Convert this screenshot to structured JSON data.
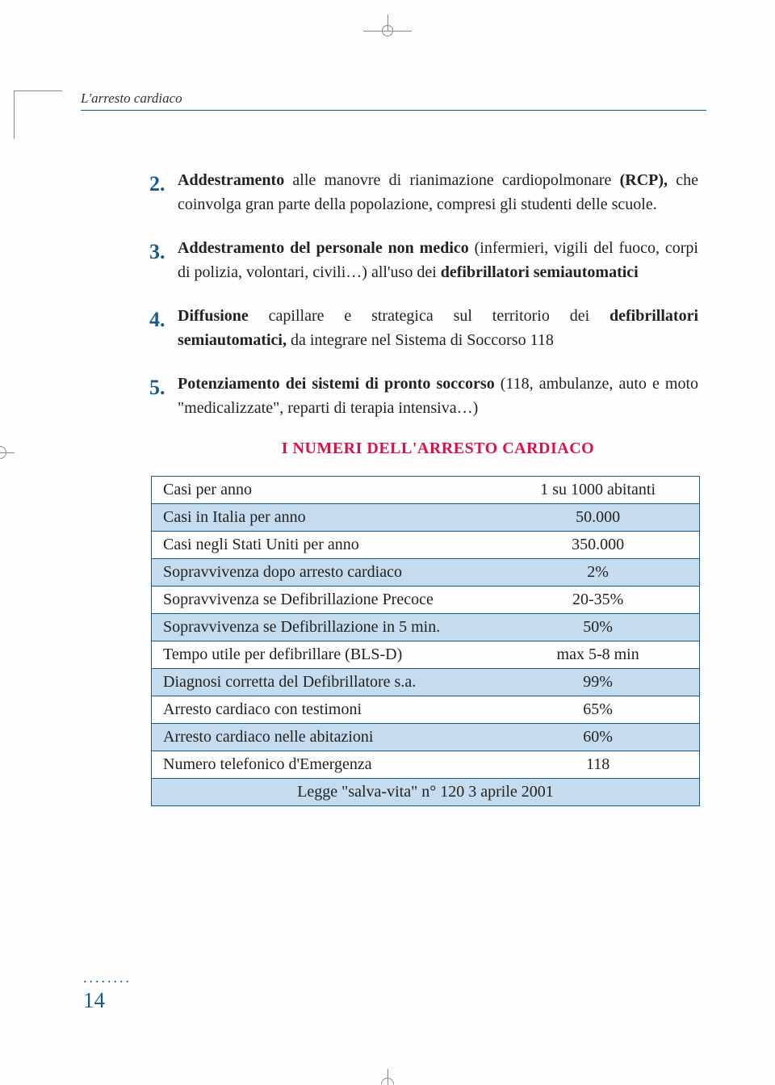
{
  "header": {
    "title": "L'arresto cardiaco"
  },
  "list": [
    {
      "num": "2.",
      "bold": "Addestramento",
      "rest": " alle manovre di rianimazione cardiopolmonare ",
      "bold2": "(RCP),",
      "rest2": " che coinvolga gran parte della popolazione, compresi gli studenti delle scuole."
    },
    {
      "num": "3.",
      "bold": "Addestramento del personale non medico",
      "rest": " (infermieri, vigili del fuoco, corpi di polizia, volontari, civili…) all'uso dei ",
      "bold2": "defibrillatori semiautomatici",
      "rest2": ""
    },
    {
      "num": "4.",
      "bold": "Diffusione",
      "rest": " capillare e strategica sul territorio dei ",
      "bold2": "defibrillatori semiautomatici,",
      "rest2": " da integrare nel Sistema di Soccorso 118"
    },
    {
      "num": "5.",
      "bold": "Potenziamento dei sistemi di pronto soccorso",
      "rest": " (118, ambulanze, auto e moto \"medicalizzate\", reparti di terapia intensiva…)",
      "bold2": "",
      "rest2": ""
    }
  ],
  "section_title": "I NUMERI DELL'ARRESTO CARDIACO",
  "table": {
    "rows": [
      {
        "label": "Casi per anno",
        "value": "1 su 1000 abitanti",
        "stripe": false
      },
      {
        "label": "Casi in Italia per anno",
        "value": "50.000",
        "stripe": true
      },
      {
        "label": "Casi negli Stati Uniti per anno",
        "value": "350.000",
        "stripe": false
      },
      {
        "label": "Sopravvivenza dopo arresto cardiaco",
        "value": "2%",
        "stripe": true
      },
      {
        "label": "Sopravvivenza se Defibrillazione Precoce",
        "value": "20-35%",
        "stripe": false
      },
      {
        "label": "Sopravvivenza se Defibrillazione in 5 min.",
        "value": "50%",
        "stripe": true
      },
      {
        "label": "Tempo utile per defibrillare (BLS-D)",
        "value": "max 5-8 min",
        "stripe": false
      },
      {
        "label": "Diagnosi corretta del Defibrillatore s.a.",
        "value": "99%",
        "stripe": true
      },
      {
        "label": "Arresto cardiaco con testimoni",
        "value": "65%",
        "stripe": false
      },
      {
        "label": "Arresto cardiaco nelle abitazioni",
        "value": "60%",
        "stripe": true
      },
      {
        "label": "Numero telefonico d'Emergenza",
        "value": "118",
        "stripe": false
      }
    ],
    "footer": "Legge \"salva-vita\" n° 120 3 aprile 2001"
  },
  "page_number": "14",
  "dots": "........",
  "colors": {
    "accent": "#1a5a8a",
    "title_red": "#d14",
    "stripe": "#c5dcef"
  }
}
